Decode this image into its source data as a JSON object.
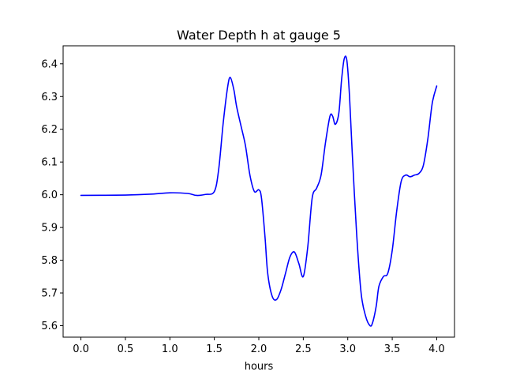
{
  "chart_data": {
    "type": "line",
    "title": "Water Depth h at gauge 5",
    "xlabel": "hours",
    "ylabel": "",
    "xlim": [
      -0.2,
      4.2
    ],
    "ylim": [
      5.565,
      6.455
    ],
    "xticks": [
      0.0,
      0.5,
      1.0,
      1.5,
      2.0,
      2.5,
      3.0,
      3.5,
      4.0
    ],
    "xtick_labels": [
      "0.0",
      "0.5",
      "1.0",
      "1.5",
      "2.0",
      "2.5",
      "3.0",
      "3.5",
      "4.0"
    ],
    "yticks": [
      5.6,
      5.7,
      5.8,
      5.9,
      6.0,
      6.1,
      6.2,
      6.3,
      6.4
    ],
    "ytick_labels": [
      "5.6",
      "5.7",
      "5.8",
      "5.9",
      "6.0",
      "6.1",
      "6.2",
      "6.3",
      "6.4"
    ],
    "grid": false,
    "series": [
      {
        "color": "#0000ff",
        "x": [
          0.0,
          0.5,
          0.8,
          1.0,
          1.2,
          1.3,
          1.4,
          1.5,
          1.55,
          1.6,
          1.65,
          1.68,
          1.72,
          1.75,
          1.8,
          1.85,
          1.9,
          1.95,
          2.0,
          2.03,
          2.07,
          2.1,
          2.15,
          2.2,
          2.25,
          2.3,
          2.35,
          2.4,
          2.45,
          2.5,
          2.55,
          2.6,
          2.65,
          2.7,
          2.75,
          2.8,
          2.83,
          2.86,
          2.9,
          2.93,
          2.96,
          2.99,
          3.02,
          3.05,
          3.1,
          3.15,
          3.2,
          3.25,
          3.28,
          3.32,
          3.35,
          3.4,
          3.45,
          3.5,
          3.55,
          3.6,
          3.65,
          3.7,
          3.75,
          3.8,
          3.85,
          3.9,
          3.95,
          4.0
        ],
        "y": [
          5.998,
          5.999,
          6.002,
          6.006,
          6.004,
          5.998,
          6.001,
          6.01,
          6.08,
          6.22,
          6.33,
          6.358,
          6.32,
          6.27,
          6.21,
          6.15,
          6.06,
          6.01,
          6.015,
          5.99,
          5.87,
          5.76,
          5.69,
          5.68,
          5.71,
          5.76,
          5.81,
          5.825,
          5.79,
          5.75,
          5.84,
          5.99,
          6.02,
          6.06,
          6.16,
          6.24,
          6.24,
          6.215,
          6.25,
          6.35,
          6.415,
          6.41,
          6.3,
          6.13,
          5.88,
          5.7,
          5.63,
          5.6,
          5.61,
          5.66,
          5.72,
          5.75,
          5.76,
          5.83,
          5.95,
          6.04,
          6.06,
          6.055,
          6.06,
          6.065,
          6.09,
          6.17,
          6.28,
          6.332
        ]
      }
    ]
  }
}
